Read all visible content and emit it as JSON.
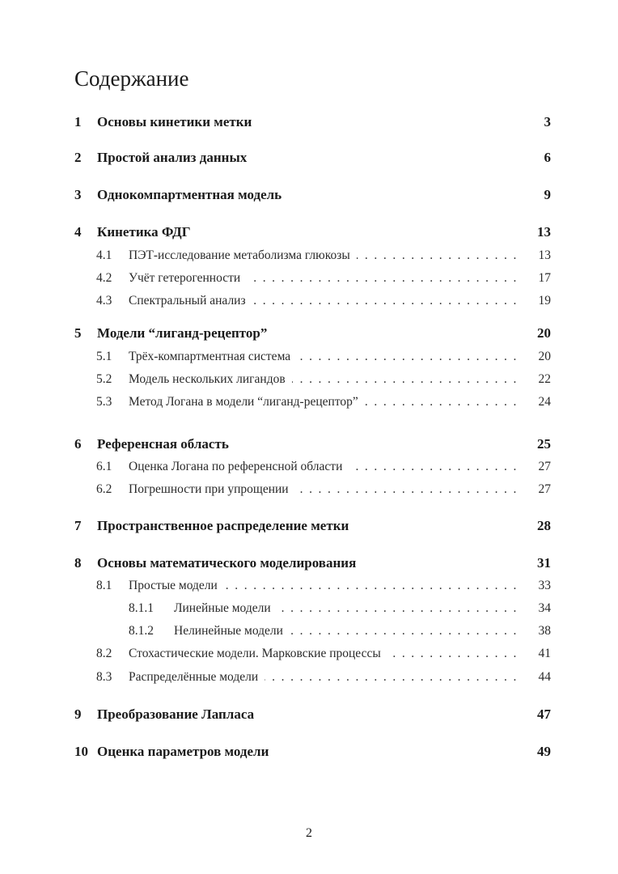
{
  "title": "Содержание",
  "entries": [
    {
      "level": 1,
      "num": "1",
      "text": "Основы кинетики метки",
      "page": "3"
    },
    {
      "level": 1,
      "num": "2",
      "text": "Простой анализ данных",
      "page": "6"
    },
    {
      "level": 1,
      "num": "3",
      "text": "Однокомпартментная модель",
      "page": "9"
    },
    {
      "level": 1,
      "num": "4",
      "text": "Кинетика ФДГ",
      "page": "13"
    },
    {
      "level": 2,
      "num": "4.1",
      "text": "ПЭТ-исследование метаболизма глюкозы",
      "page": "13"
    },
    {
      "level": 2,
      "num": "4.2",
      "text": "Учёт гетерогенности",
      "page": "17"
    },
    {
      "level": 2,
      "num": "4.3",
      "text": "Спектральный анализ",
      "page": "19"
    },
    {
      "level": 1,
      "num": "5",
      "text": "Модели “лиганд-рецептор”",
      "page": "20"
    },
    {
      "level": 2,
      "num": "5.1",
      "text": "Трёх-компартментная система",
      "page": "20"
    },
    {
      "level": 2,
      "num": "5.2",
      "text": "Модель нескольких лигандов",
      "page": "22"
    },
    {
      "level": 2,
      "num": "5.3",
      "text": "Метод Логана в модели “лиганд-рецептор”",
      "page": "24"
    },
    {
      "level": 1,
      "num": "6",
      "text": "Референсная область",
      "page": "25"
    },
    {
      "level": 2,
      "num": "6.1",
      "text": "Оценка Логана по референсной области",
      "page": "27"
    },
    {
      "level": 2,
      "num": "6.2",
      "text": "Погрешности при упрощении",
      "page": "27"
    },
    {
      "level": 1,
      "num": "7",
      "text": "Пространственное распределение метки",
      "page": "28"
    },
    {
      "level": 1,
      "num": "8",
      "text": "Основы математического моделирования",
      "page": "31"
    },
    {
      "level": 2,
      "num": "8.1",
      "text": "Простые модели",
      "page": "33"
    },
    {
      "level": 3,
      "num": "8.1.1",
      "text": "Линейные модели",
      "page": "34"
    },
    {
      "level": 3,
      "num": "8.1.2",
      "text": "Нелинейные модели",
      "page": "38"
    },
    {
      "level": 2,
      "num": "8.2",
      "text": "Стохастические модели. Марковские процессы",
      "page": "41"
    },
    {
      "level": 2,
      "num": "8.3",
      "text": "Распределённые модели",
      "page": "44"
    },
    {
      "level": 1,
      "num": "9",
      "text": "Преобразование Лапласа",
      "page": "47"
    },
    {
      "level": 1,
      "num": "10",
      "text": "Оценка параметров модели",
      "page": "49"
    }
  ],
  "page_number": "2"
}
